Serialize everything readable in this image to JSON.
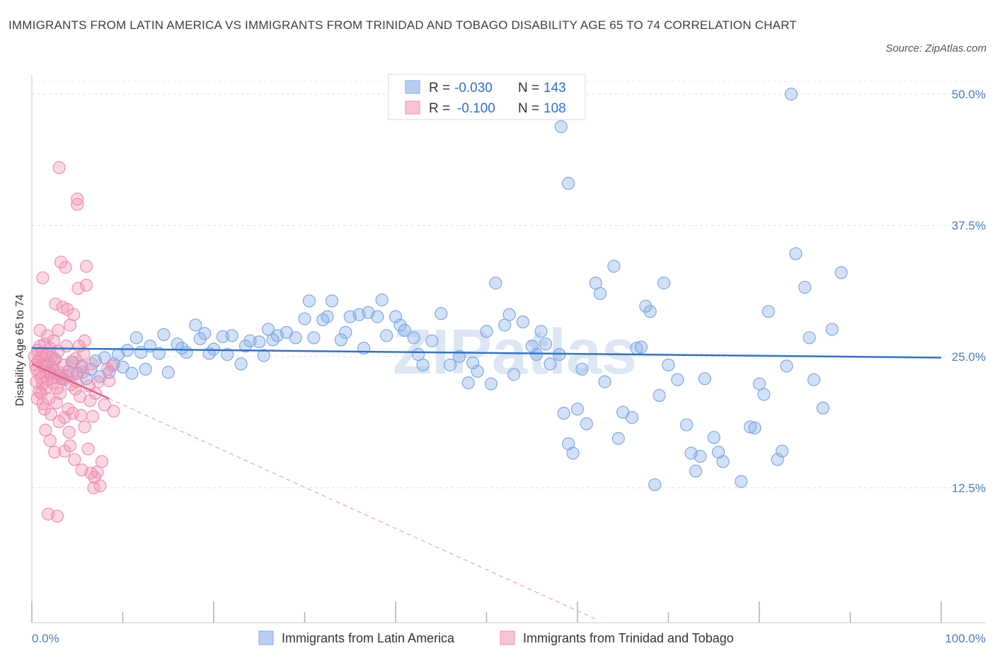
{
  "title": "IMMIGRANTS FROM LATIN AMERICA VS IMMIGRANTS FROM TRINIDAD AND TOBAGO DISABILITY AGE 65 TO 74 CORRELATION CHART",
  "source": "Source: ZipAtlas.com",
  "watermark": "ZIPatlas",
  "colors": {
    "blue": "#7fa8e8",
    "blue_line": "#2f72d0",
    "pink": "#f090b0",
    "pink_line": "#e0608a",
    "tick": "#4a7cc8"
  },
  "legend": {
    "rows": [
      {
        "r_label": "R =",
        "r_value": "-0.030",
        "n_label": "N =",
        "n_value": "143"
      },
      {
        "r_label": "R =",
        "r_value": "-0.100",
        "n_label": "N =",
        "n_value": "108"
      }
    ]
  },
  "chart_data": {
    "type": "scatter",
    "title": "IMMIGRANTS FROM LATIN AMERICA VS IMMIGRANTS FROM TRINIDAD AND TOBAGO DISABILITY AGE 65 TO 74 CORRELATION CHART",
    "xlabel": "",
    "ylabel": "Disability Age 65 to 74",
    "x_tick_labels": [
      "0.0%",
      "100.0%"
    ],
    "y_tick_labels": [
      "12.5%",
      "25.0%",
      "37.5%",
      "50.0%"
    ],
    "y_ticks": [
      12.5,
      25.0,
      37.5,
      50.0
    ],
    "xlim": [
      0,
      100
    ],
    "ylim": [
      0,
      50
    ],
    "grid": true,
    "legend_position": "top-center",
    "series": [
      {
        "name": "Immigrants from Latin America",
        "r": -0.03,
        "n": 143,
        "trend": {
          "x": [
            0,
            100
          ],
          "y": [
            25.8,
            24.9
          ]
        },
        "points": [
          [
            1.5,
            24.2
          ],
          [
            2,
            23.5
          ],
          [
            2.5,
            24.8
          ],
          [
            3,
            23.2
          ],
          [
            3.5,
            22.8
          ],
          [
            4,
            23.6
          ],
          [
            4.5,
            24.5
          ],
          [
            5,
            23.4
          ],
          [
            5.5,
            24.1
          ],
          [
            6,
            22.9
          ],
          [
            6.5,
            23.8
          ],
          [
            7,
            24.6
          ],
          [
            7.5,
            23.1
          ],
          [
            8,
            24.9
          ],
          [
            8.5,
            23.5
          ],
          [
            9,
            24.3
          ],
          [
            9.5,
            25.2
          ],
          [
            10,
            24.0
          ],
          [
            10.5,
            25.6
          ],
          [
            11,
            23.4
          ],
          [
            11.5,
            26.8
          ],
          [
            12,
            25.4
          ],
          [
            12.5,
            23.8
          ],
          [
            13,
            26.0
          ],
          [
            14,
            25.3
          ],
          [
            14.5,
            27.1
          ],
          [
            15,
            23.5
          ],
          [
            16,
            26.2
          ],
          [
            16.5,
            25.8
          ],
          [
            17,
            25.4
          ],
          [
            18,
            28.0
          ],
          [
            18.5,
            26.7
          ],
          [
            19,
            27.2
          ],
          [
            19.5,
            25.3
          ],
          [
            20,
            25.7
          ],
          [
            21,
            26.9
          ],
          [
            21.5,
            25.2
          ],
          [
            22,
            27.0
          ],
          [
            23,
            24.3
          ],
          [
            23.5,
            26.0
          ],
          [
            24,
            26.5
          ],
          [
            25,
            26.4
          ],
          [
            25.5,
            25.1
          ],
          [
            26,
            27.6
          ],
          [
            26.5,
            26.6
          ],
          [
            27,
            27.0
          ],
          [
            28,
            27.3
          ],
          [
            29,
            26.8
          ],
          [
            30,
            28.6
          ],
          [
            30.5,
            30.3
          ],
          [
            31,
            26.8
          ],
          [
            32,
            28.5
          ],
          [
            32.5,
            28.8
          ],
          [
            33,
            30.3
          ],
          [
            34,
            26.6
          ],
          [
            34.5,
            27.3
          ],
          [
            35,
            28.8
          ],
          [
            36,
            29.0
          ],
          [
            36.5,
            25.8
          ],
          [
            37,
            29.2
          ],
          [
            38,
            28.8
          ],
          [
            38.5,
            30.4
          ],
          [
            39,
            27.0
          ],
          [
            40,
            28.8
          ],
          [
            40.5,
            28.0
          ],
          [
            41,
            27.5
          ],
          [
            42,
            26.8
          ],
          [
            42.5,
            25.2
          ],
          [
            43,
            24.2
          ],
          [
            44,
            26.5
          ],
          [
            45,
            29.1
          ],
          [
            46,
            24.2
          ],
          [
            47,
            25.0
          ],
          [
            48,
            22.5
          ],
          [
            48.5,
            24.4
          ],
          [
            49,
            23.6
          ],
          [
            50,
            27.4
          ],
          [
            50.5,
            22.4
          ],
          [
            51,
            32.0
          ],
          [
            52,
            28.0
          ],
          [
            52.5,
            29.0
          ],
          [
            53,
            23.3
          ],
          [
            54,
            28.3
          ],
          [
            55,
            26.0
          ],
          [
            55.5,
            25.2
          ],
          [
            56,
            27.4
          ],
          [
            56.5,
            26.2
          ],
          [
            57,
            24.3
          ],
          [
            58,
            25.2
          ],
          [
            58.5,
            19.6
          ],
          [
            59,
            16.7
          ],
          [
            59.5,
            15.8
          ],
          [
            60,
            20.0
          ],
          [
            60.5,
            23.8
          ],
          [
            61,
            18.6
          ],
          [
            62,
            32.0
          ],
          [
            62.5,
            31.0
          ],
          [
            63,
            22.6
          ],
          [
            64,
            33.6
          ],
          [
            64.5,
            17.2
          ],
          [
            65,
            19.7
          ],
          [
            66,
            19.2
          ],
          [
            66.5,
            25.8
          ],
          [
            67,
            25.9
          ],
          [
            67.5,
            29.8
          ],
          [
            68,
            29.3
          ],
          [
            68.5,
            12.8
          ],
          [
            69,
            21.3
          ],
          [
            69.5,
            32.0
          ],
          [
            70,
            24.2
          ],
          [
            71,
            22.8
          ],
          [
            72,
            18.5
          ],
          [
            72.5,
            15.8
          ],
          [
            73,
            14.1
          ],
          [
            74,
            22.9
          ],
          [
            75,
            17.3
          ],
          [
            75.5,
            15.9
          ],
          [
            76,
            15.0
          ],
          [
            78,
            13.1
          ],
          [
            79,
            18.3
          ],
          [
            79.5,
            18.2
          ],
          [
            80,
            22.4
          ],
          [
            80.5,
            21.4
          ],
          [
            81,
            29.3
          ],
          [
            82,
            15.2
          ],
          [
            82.5,
            16.0
          ],
          [
            83,
            24.1
          ],
          [
            84,
            34.8
          ],
          [
            85,
            31.6
          ],
          [
            85.5,
            26.8
          ],
          [
            86,
            22.8
          ],
          [
            87,
            20.1
          ],
          [
            88,
            27.6
          ],
          [
            89,
            33.0
          ],
          [
            83.5,
            50.0
          ],
          [
            58,
            49.5
          ],
          [
            58.2,
            46.9
          ],
          [
            59,
            41.5
          ],
          [
            73.5,
            15.5
          ]
        ]
      },
      {
        "name": "Immigrants from Trinidad and Tobago",
        "r": -0.1,
        "n": 108,
        "trend": {
          "x": [
            0,
            8.5
          ],
          "y": [
            24.3,
            21.0
          ]
        },
        "trend_extension": {
          "x": [
            8.5,
            62
          ],
          "y": [
            21.0,
            0
          ]
        },
        "points": [
          [
            0.3,
            25.0
          ],
          [
            0.4,
            24.2
          ],
          [
            0.5,
            23.8
          ],
          [
            0.5,
            22.6
          ],
          [
            0.6,
            25.6
          ],
          [
            0.7,
            24.6
          ],
          [
            0.8,
            23.4
          ],
          [
            0.8,
            21.7
          ],
          [
            0.9,
            26.0
          ],
          [
            1.0,
            24.9
          ],
          [
            1.0,
            23.0
          ],
          [
            1.1,
            25.3
          ],
          [
            1.2,
            22.4
          ],
          [
            1.2,
            20.5
          ],
          [
            1.3,
            24.1
          ],
          [
            1.4,
            26.2
          ],
          [
            1.5,
            23.6
          ],
          [
            1.5,
            18.0
          ],
          [
            1.6,
            25.1
          ],
          [
            1.7,
            22.8
          ],
          [
            1.8,
            24.4
          ],
          [
            1.9,
            21.0
          ],
          [
            2.0,
            23.3
          ],
          [
            2.0,
            25.8
          ],
          [
            2.1,
            19.5
          ],
          [
            2.2,
            24.0
          ],
          [
            2.3,
            22.5
          ],
          [
            2.4,
            26.5
          ],
          [
            2.5,
            23.0
          ],
          [
            2.5,
            15.9
          ],
          [
            2.6,
            24.7
          ],
          [
            2.7,
            20.6
          ],
          [
            2.8,
            22.0
          ],
          [
            2.9,
            25.5
          ],
          [
            3.0,
            23.5
          ],
          [
            3.0,
            18.8
          ],
          [
            3.1,
            21.5
          ],
          [
            3.2,
            34.0
          ],
          [
            3.3,
            22.9
          ],
          [
            3.4,
            29.7
          ],
          [
            3.5,
            24.2
          ],
          [
            3.6,
            19.2
          ],
          [
            3.7,
            33.5
          ],
          [
            3.8,
            23.2
          ],
          [
            3.9,
            29.5
          ],
          [
            4.0,
            20.0
          ],
          [
            4.1,
            17.8
          ],
          [
            4.2,
            16.5
          ],
          [
            4.3,
            22.3
          ],
          [
            4.4,
            24.5
          ],
          [
            4.5,
            19.6
          ],
          [
            4.6,
            29.0
          ],
          [
            4.7,
            15.2
          ],
          [
            4.8,
            21.9
          ],
          [
            4.9,
            22.6
          ],
          [
            5.0,
            40.0
          ],
          [
            5.0,
            39.5
          ],
          [
            5.1,
            31.5
          ],
          [
            5.2,
            26.0
          ],
          [
            5.3,
            21.2
          ],
          [
            5.4,
            19.4
          ],
          [
            5.5,
            14.2
          ],
          [
            5.6,
            23.5
          ],
          [
            5.7,
            25.3
          ],
          [
            5.8,
            18.3
          ],
          [
            6.0,
            33.6
          ],
          [
            6.0,
            31.8
          ],
          [
            6.2,
            16.2
          ],
          [
            6.3,
            22.2
          ],
          [
            6.4,
            20.8
          ],
          [
            6.5,
            13.9
          ],
          [
            6.6,
            24.3
          ],
          [
            6.7,
            19.3
          ],
          [
            6.8,
            12.5
          ],
          [
            7.0,
            21.5
          ],
          [
            7.2,
            14.0
          ],
          [
            7.3,
            22.6
          ],
          [
            7.5,
            12.7
          ],
          [
            7.7,
            15.0
          ],
          [
            8.0,
            20.4
          ],
          [
            8.3,
            23.8
          ],
          [
            8.5,
            22.7
          ],
          [
            8.8,
            24.1
          ],
          [
            9.0,
            19.8
          ],
          [
            3.0,
            43.0
          ],
          [
            1.8,
            10.0
          ],
          [
            2.8,
            9.8
          ],
          [
            1.5,
            22.0
          ],
          [
            1.0,
            21.5
          ],
          [
            2.2,
            25.0
          ],
          [
            3.3,
            23.0
          ],
          [
            1.7,
            27.0
          ],
          [
            2.6,
            30.0
          ],
          [
            4.2,
            28.0
          ],
          [
            5.8,
            26.5
          ],
          [
            1.2,
            32.5
          ],
          [
            2.0,
            17.0
          ],
          [
            3.6,
            16.0
          ],
          [
            4.8,
            24.8
          ],
          [
            0.6,
            21.0
          ],
          [
            1.4,
            20.0
          ],
          [
            2.9,
            27.5
          ],
          [
            3.8,
            26.0
          ],
          [
            0.9,
            27.5
          ],
          [
            6.9,
            13.5
          ],
          [
            5.5,
            24.0
          ],
          [
            4.5,
            23.3
          ],
          [
            2.4,
            23.7
          ]
        ]
      }
    ]
  }
}
